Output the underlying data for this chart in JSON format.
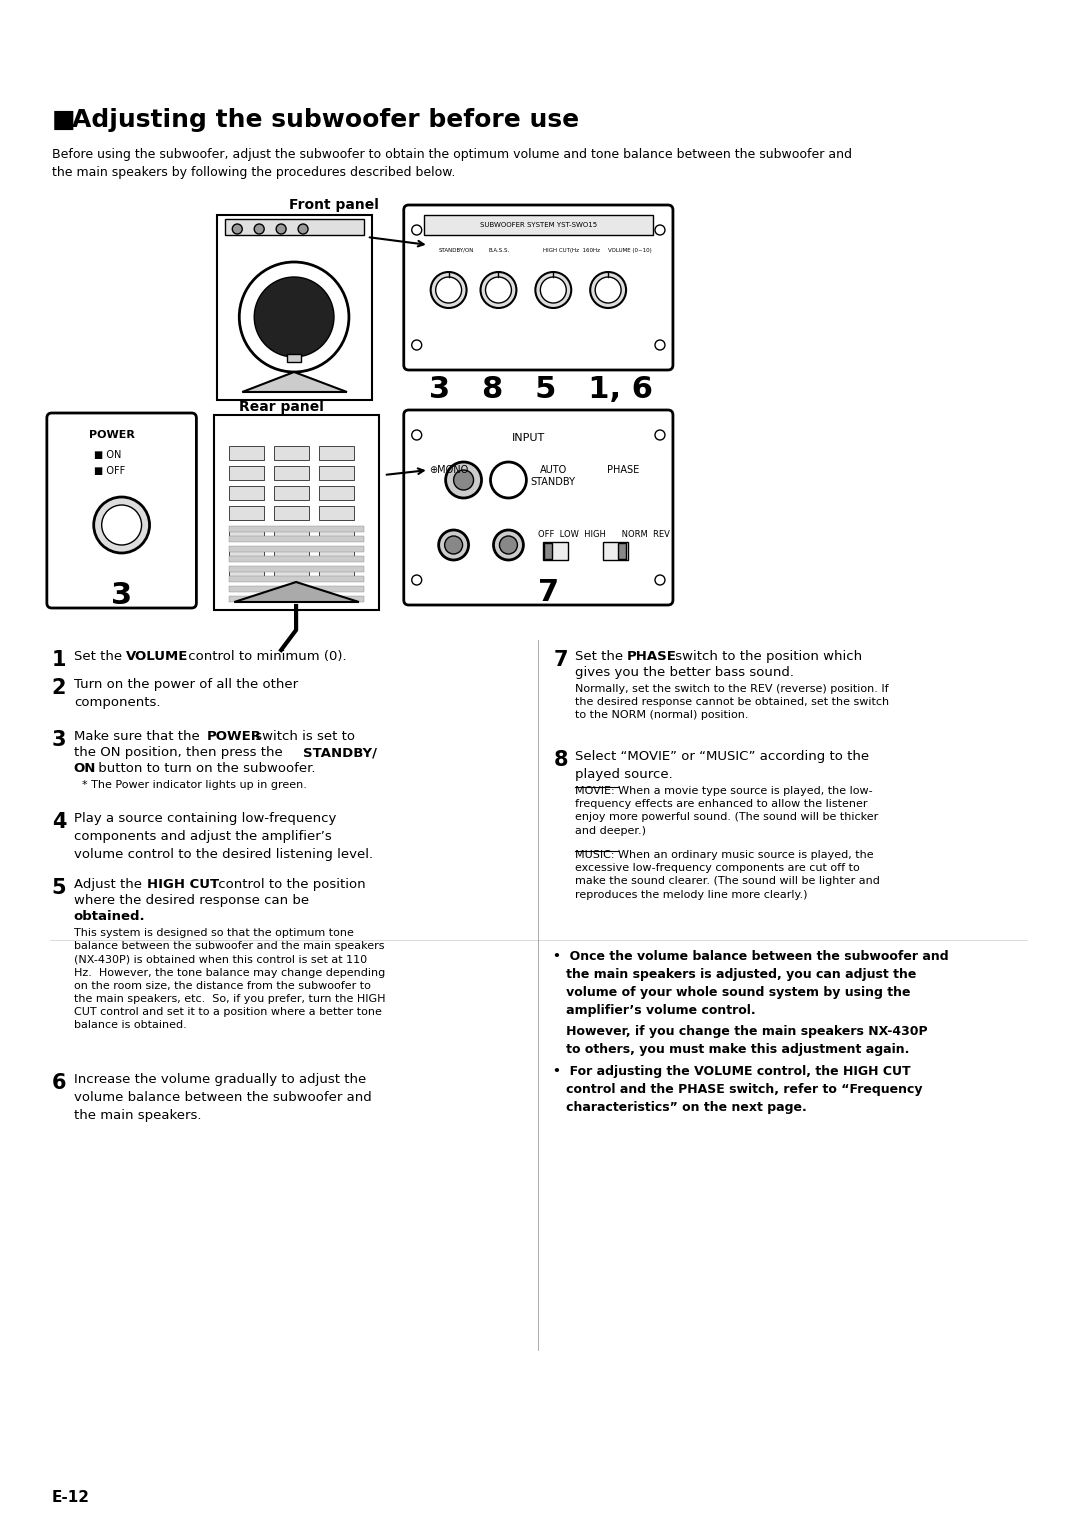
{
  "title": "■ Adjusting the subwoofer before use",
  "intro_text": "Before using the subwoofer, adjust the subwoofer to obtain the optimum volume and tone balance between the subwoofer and\nthe main speakers by following the procedures described below.",
  "front_panel_label": "Front panel",
  "rear_panel_label": "Rear panel",
  "step_numbers_front": "3   8   5   1, 6",
  "step_number_rear_left": "3",
  "step_number_rear_right": "7",
  "steps_left": [
    {
      "num": "1",
      "bold": "VOLUME",
      "text1": "Set the ",
      "text2": " control to minimum (0)."
    },
    {
      "num": "2",
      "text": "Turn on the power of all the other\ncomponents."
    },
    {
      "num": "3",
      "bold1": "POWER",
      "bold2": "STANDBY/\nON",
      "text1": "Make sure that the ",
      "text2": " switch is set to\nthe ON position, then press the ",
      "text3": " button to turn on the subwoofer.",
      "asterisk": "* The Power indicator lights up in green."
    },
    {
      "num": "4",
      "bold": "amplifier’s",
      "text": "Play a source containing low-frequency\ncomponents and adjust the amplifier’s\nvolume control to the desired listening level."
    },
    {
      "num": "5",
      "bold": "HIGH CUT",
      "text1": "Adjust the ",
      "text2": " control to the position\nwhere the desired response can be\nobtained.",
      "subtext": "This system is designed so that the optimum tone\nbalance between the subwoofer and the main speakers\n(NX-430P) is obtained when this control is set at 110\nHz.  However, the tone balance may change depending\non the room size, the distance from the subwoofer to\nthe main speakers, etc.  So, if you prefer, turn the HIGH\nCUT control and set it to a position where a better tone\nbalance is obtained."
    },
    {
      "num": "6",
      "text": "Increase the volume gradually to adjust the\nvolume balance between the subwoofer and\nthe main speakers."
    }
  ],
  "steps_right": [
    {
      "num": "7",
      "bold": "PHASE",
      "text1": "Set the ",
      "text2": " switch to the position which\ngives you the better bass sound.",
      "subtext": "Normally, set the switch to the REV (reverse) position. If\nthe desired response cannot be obtained, set the switch\nto the NORM (normal) position."
    },
    {
      "num": "8",
      "text1": "Select “MOVIE” or “MUSIC” according to the\nplayed source.",
      "subtext_movie": "MOVIE: When a movie type source is played, the low-\nfrequency effects are enhanced to allow the listener\nenjoy more powerful sound. (The sound will be thicker\nand deeper.)",
      "subtext_music": "MUSIC: When an ordinary music source is played, the\nexcessive low-frequency components are cut off to\nmake the sound clearer. (The sound will be lighter and\nreproduces the melody line more clearly.)"
    }
  ],
  "bullets": [
    {
      "bold": "Once the volume balance between the subwoofer and\nthe main speakers is adjusted, you can adjust the\nvolume of your whole sound system by using the\namplifier’s volume control.",
      "normal": "However, if you change the main speakers NX-430P\nto others, you must make this adjustment again."
    },
    {
      "bold": "For adjusting the VOLUME control, the HIGH CUT\ncontrol and the PHASE switch, refer to “Frequency\ncharacteristics” on the next page."
    }
  ],
  "footer": "E-12",
  "bg_color": "#ffffff",
  "text_color": "#000000"
}
